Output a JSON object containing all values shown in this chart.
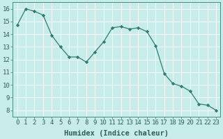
{
  "x": [
    0,
    1,
    2,
    3,
    4,
    5,
    6,
    7,
    8,
    9,
    10,
    11,
    12,
    13,
    14,
    15,
    16,
    17,
    18,
    19,
    20,
    21,
    22,
    23
  ],
  "y": [
    14.7,
    16.0,
    15.8,
    15.5,
    13.9,
    13.0,
    12.2,
    12.2,
    11.8,
    12.6,
    13.4,
    14.5,
    14.6,
    14.4,
    14.5,
    14.2,
    13.1,
    10.9,
    10.1,
    9.9,
    9.5,
    8.5,
    8.4,
    8.0
  ],
  "line_color": "#2e7d6e",
  "marker": "D",
  "marker_size": 2.2,
  "bg_color": "#c8ece9",
  "grid_color": "#b0d8d4",
  "xlabel": "Humidex (Indice chaleur)",
  "xlabel_fontsize": 7.5,
  "tick_fontsize": 6.5,
  "xlim": [
    -0.5,
    23.5
  ],
  "ylim": [
    7.5,
    16.5
  ],
  "yticks": [
    8,
    9,
    10,
    11,
    12,
    13,
    14,
    15,
    16
  ],
  "xticks": [
    0,
    1,
    2,
    3,
    4,
    5,
    6,
    7,
    8,
    9,
    10,
    11,
    12,
    13,
    14,
    15,
    16,
    17,
    18,
    19,
    20,
    21,
    22,
    23
  ]
}
